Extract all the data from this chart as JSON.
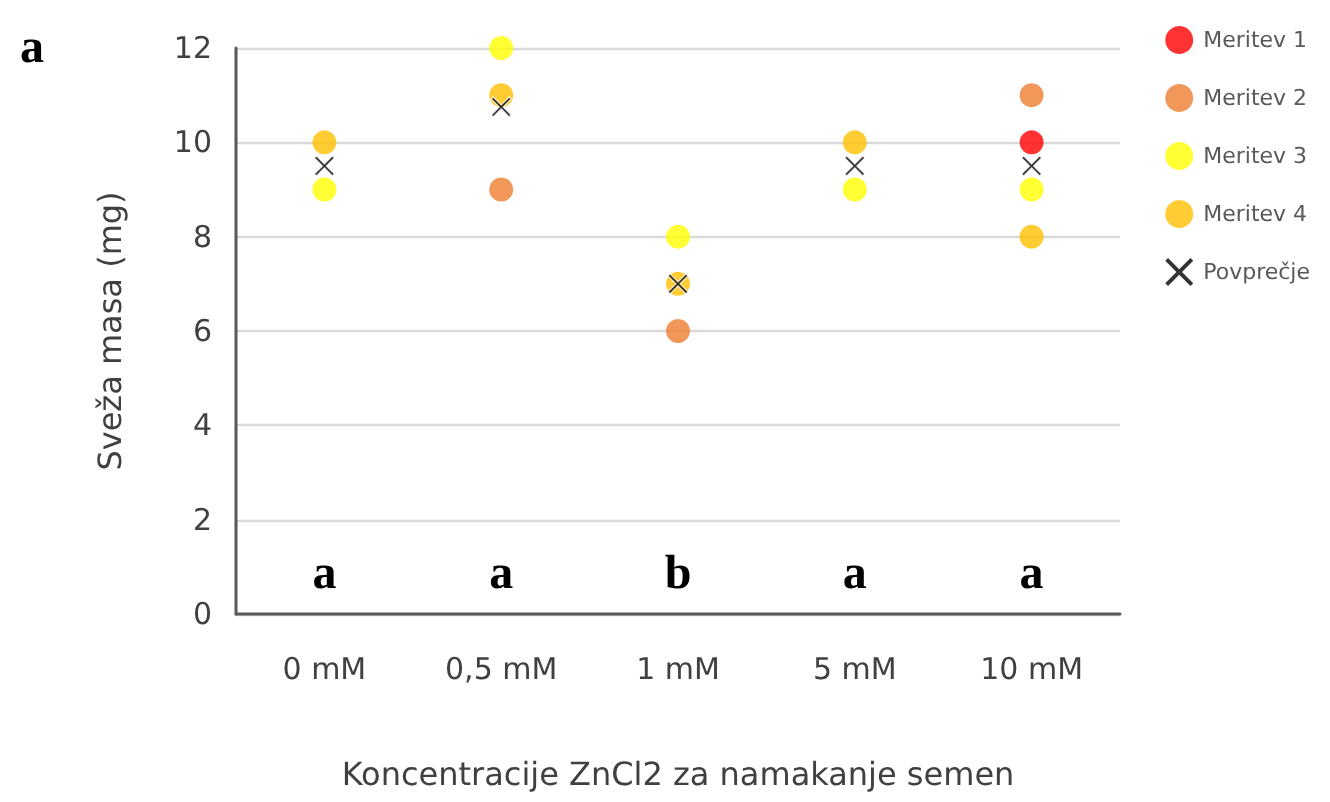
{
  "chart_data": {
    "type": "scatter",
    "ylabel": "Sveža masa (mg)",
    "xlabel": "Koncentracije ZnCl2 za namakanje semen",
    "categories": [
      "0 mM",
      "0,5 mM",
      "1 mM",
      "5 mM",
      "10 mM"
    ],
    "series": [
      {
        "name": "Meritev 1",
        "color": "#ff0000",
        "marker": "circle",
        "values": [
          null,
          null,
          null,
          null,
          10
        ]
      },
      {
        "name": "Meritev 2",
        "color": "#ed7d31",
        "marker": "circle",
        "values": [
          null,
          9,
          6,
          null,
          11
        ]
      },
      {
        "name": "Meritev 3",
        "color": "#ffff00",
        "marker": "circle",
        "values": [
          9,
          12,
          8,
          9,
          9
        ]
      },
      {
        "name": "Meritev 4",
        "color": "#ffc000",
        "marker": "circle",
        "values": [
          10,
          11,
          7,
          10,
          8
        ]
      },
      {
        "name": "Povprečje",
        "color": "#000000",
        "marker": "cross",
        "values": [
          9.5,
          10.75,
          7,
          9.5,
          9.5
        ]
      }
    ],
    "ylim": [
      0,
      12
    ],
    "yticks": [
      0,
      2,
      4,
      6,
      8,
      10,
      12
    ],
    "grid": "y",
    "legend": "right",
    "annotations": [
      "a",
      "a",
      "a",
      "b",
      "a",
      "a"
    ]
  }
}
